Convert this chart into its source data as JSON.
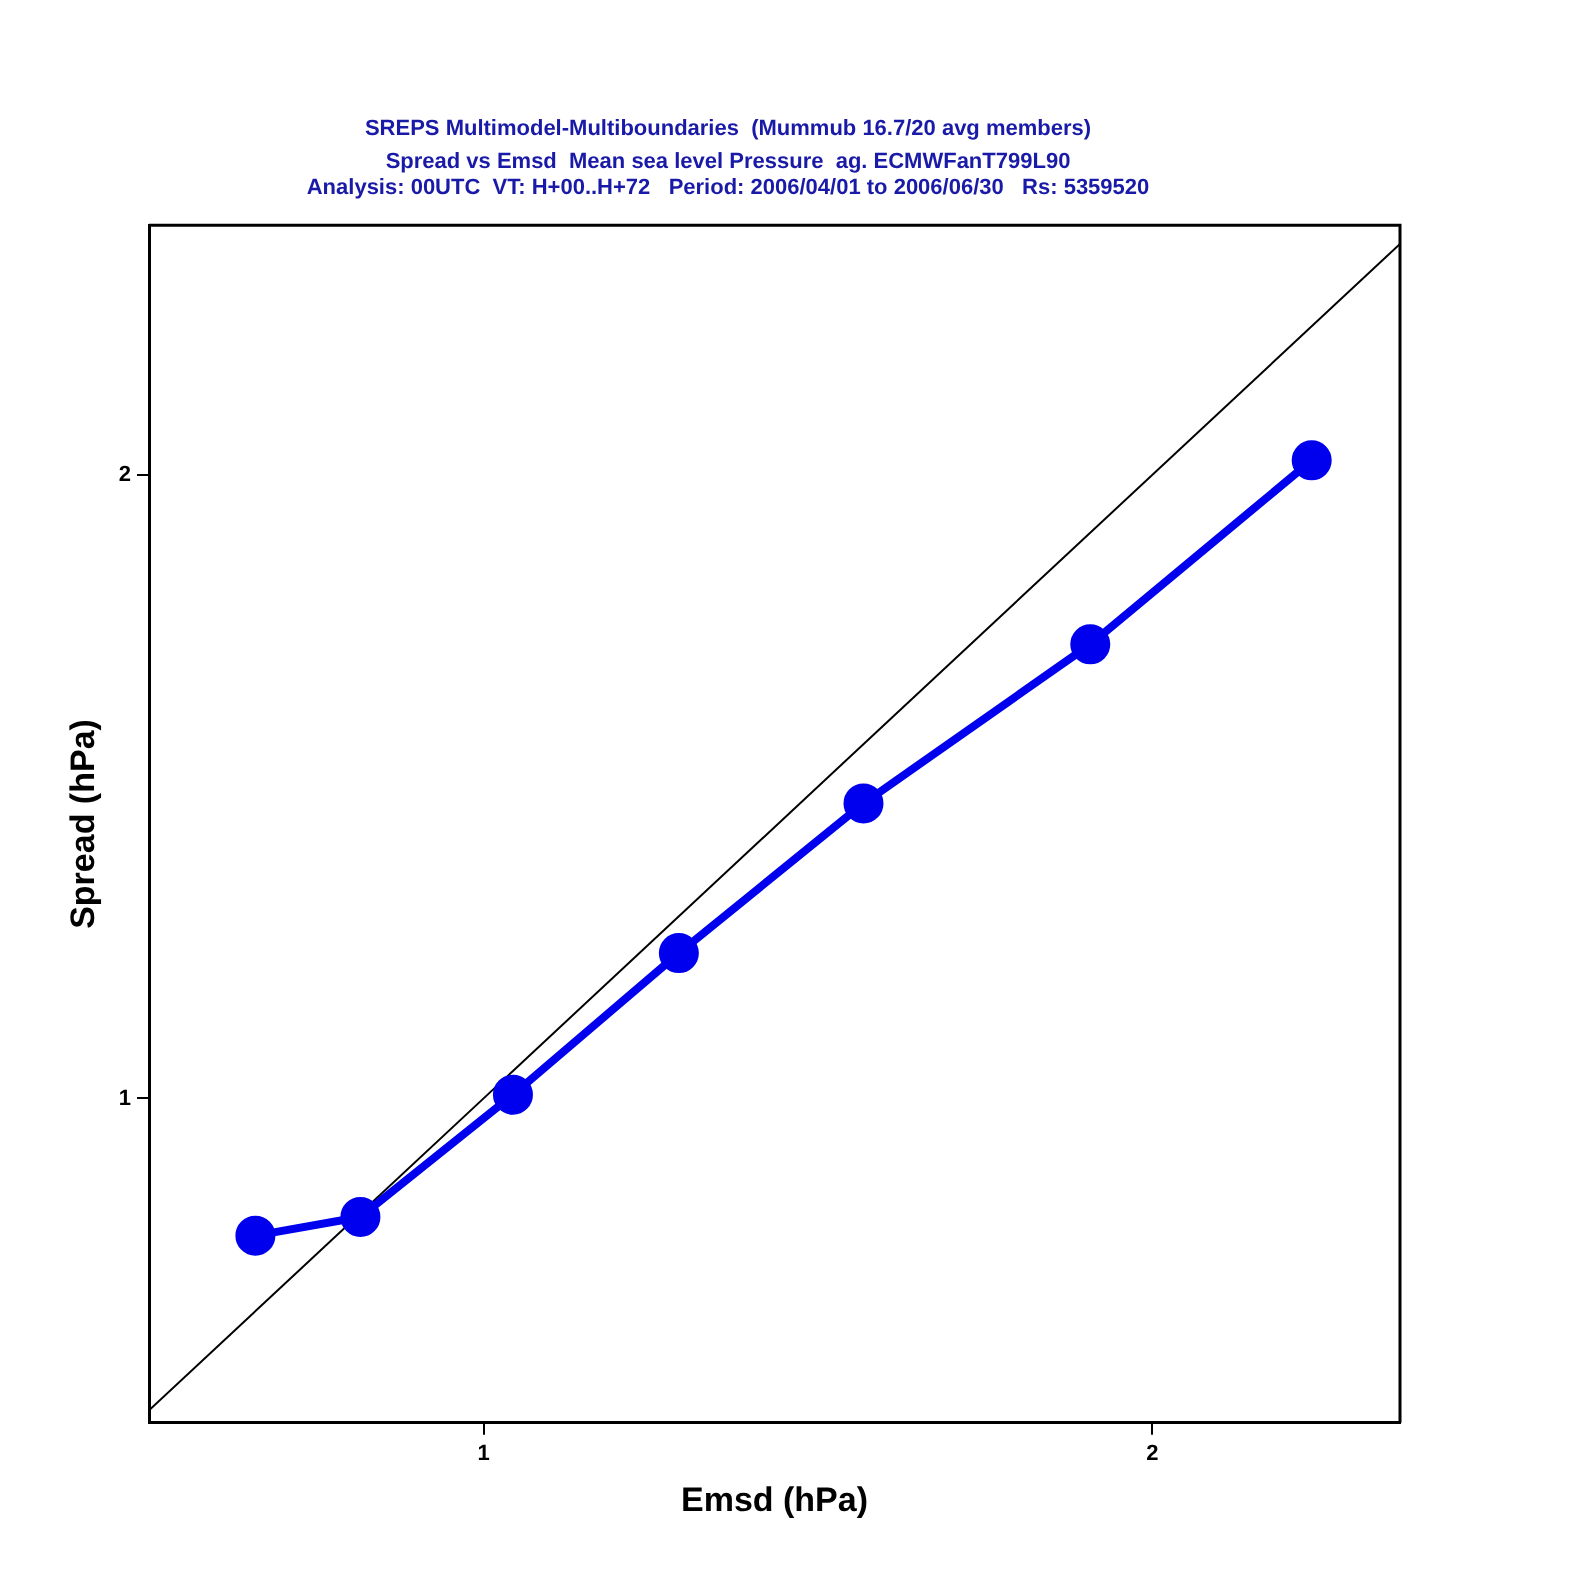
{
  "chart_data": {
    "type": "line",
    "title": "SREPS Multimodel-Multiboundaries  (Mummub 16.7/20 avg members)",
    "subtitle": "Spread vs Emsd  Mean sea level Pressure  ag. ECMWFanT799L90\nAnalysis: 00UTC  VT: H+00..H+72   Period: 2006/04/01 to 2006/06/30   Rs: 5359520",
    "xlabel": "Emsd (hPa)",
    "ylabel": "Spread (hPa)",
    "xlim": [
      0.5,
      2.37
    ],
    "ylim": [
      0.48,
      2.4
    ],
    "xticks": [
      1,
      2
    ],
    "yticks": [
      1,
      2
    ],
    "grid": false,
    "legend": false,
    "series": [
      {
        "color": "#000000",
        "marker": "none",
        "x": [
          0.5,
          2.37
        ],
        "values": [
          0.5,
          2.37
        ]
      },
      {
        "color": "#0000ee",
        "marker": "circle",
        "x": [
          0.659,
          0.816,
          1.044,
          1.292,
          1.568,
          1.907,
          2.238
        ],
        "values": [
          0.78,
          0.81,
          1.006,
          1.233,
          1.473,
          1.728,
          2.023
        ]
      }
    ]
  }
}
